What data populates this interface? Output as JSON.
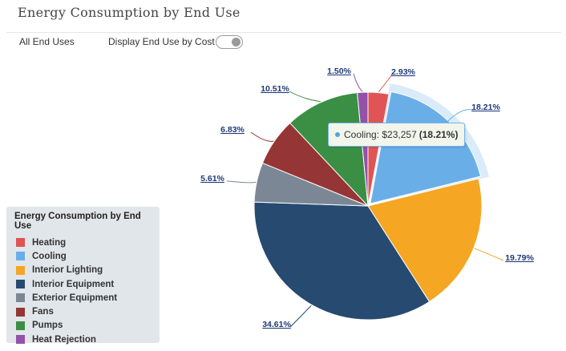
{
  "title": "Energy Consumption by End Use",
  "filter_label": "All End Uses",
  "toggle": {
    "label": "Display End Use by Cost",
    "on": false
  },
  "legend": {
    "title": "Energy Consumption by End Use"
  },
  "tooltip": {
    "series": "Cooling",
    "value": "$23,257",
    "percent": "(18.21%)"
  },
  "chart_data": {
    "type": "pie",
    "title": "Energy Consumption by End Use",
    "unit": "%",
    "slices": [
      {
        "name": "Heating",
        "value": 2.93,
        "label": "2.93%",
        "color": "#e05454"
      },
      {
        "name": "Cooling",
        "value": 18.21,
        "label": "18.21%",
        "color": "#6aaee8",
        "highlighted": true
      },
      {
        "name": "Interior Lighting",
        "value": 19.79,
        "label": "19.79%",
        "color": "#f5a623"
      },
      {
        "name": "Interior Equipment",
        "value": 34.61,
        "label": "34.61%",
        "color": "#264a70"
      },
      {
        "name": "Exterior Equipment",
        "value": 5.61,
        "label": "5.61%",
        "color": "#7b8795"
      },
      {
        "name": "Fans",
        "value": 6.83,
        "label": "6.83%",
        "color": "#953536"
      },
      {
        "name": "Pumps",
        "value": 10.51,
        "label": "10.51%",
        "color": "#3b8f45"
      },
      {
        "name": "Heat Rejection",
        "value": 1.5,
        "label": "1.50%",
        "color": "#9351a8"
      }
    ]
  }
}
